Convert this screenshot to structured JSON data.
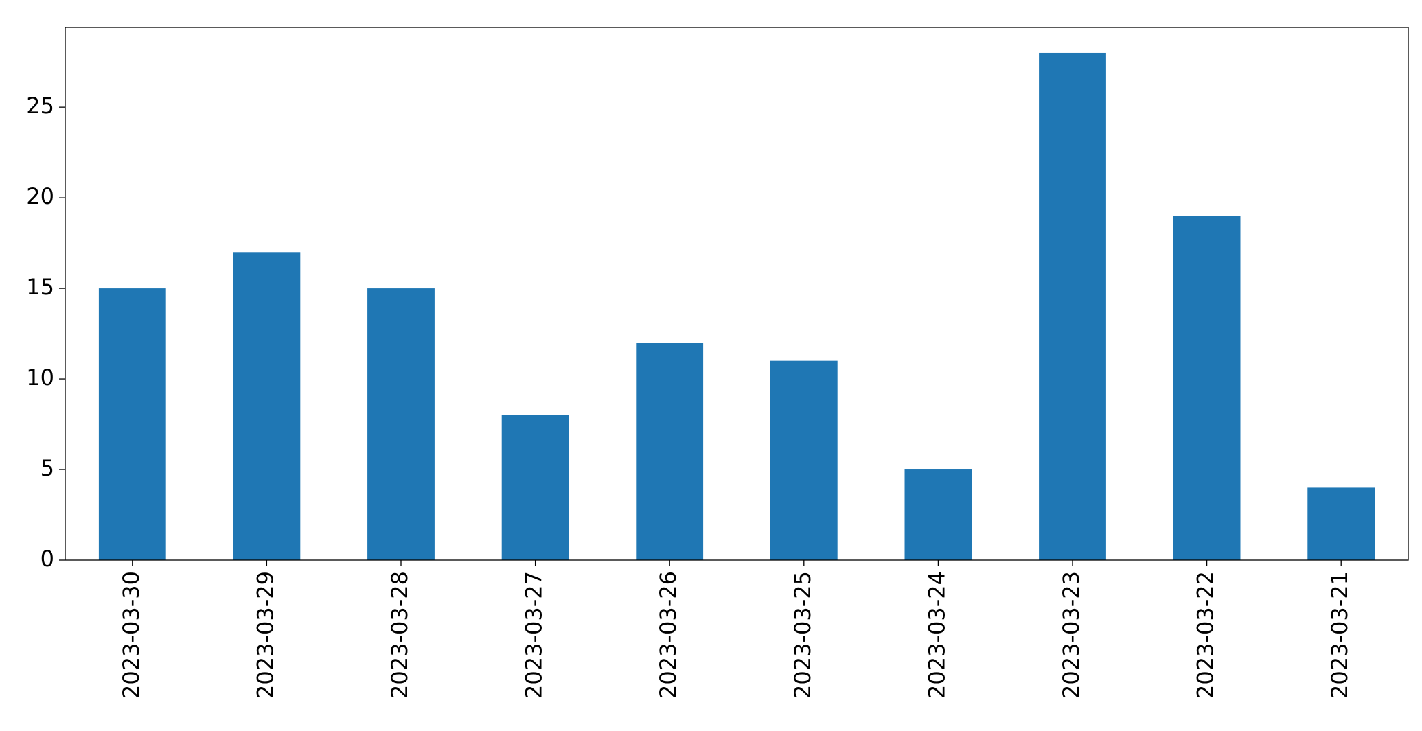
{
  "chart_data": {
    "type": "bar",
    "categories": [
      "2023-03-30",
      "2023-03-29",
      "2023-03-28",
      "2023-03-27",
      "2023-03-26",
      "2023-03-25",
      "2023-03-24",
      "2023-03-23",
      "2023-03-22",
      "2023-03-21"
    ],
    "values": [
      15,
      17,
      15,
      8,
      12,
      11,
      5,
      28,
      19,
      4
    ],
    "color": "#1f77b4",
    "ylim": [
      0,
      29.4
    ],
    "yticks": [
      0,
      5,
      10,
      15,
      20,
      25
    ],
    "grid": false
  }
}
